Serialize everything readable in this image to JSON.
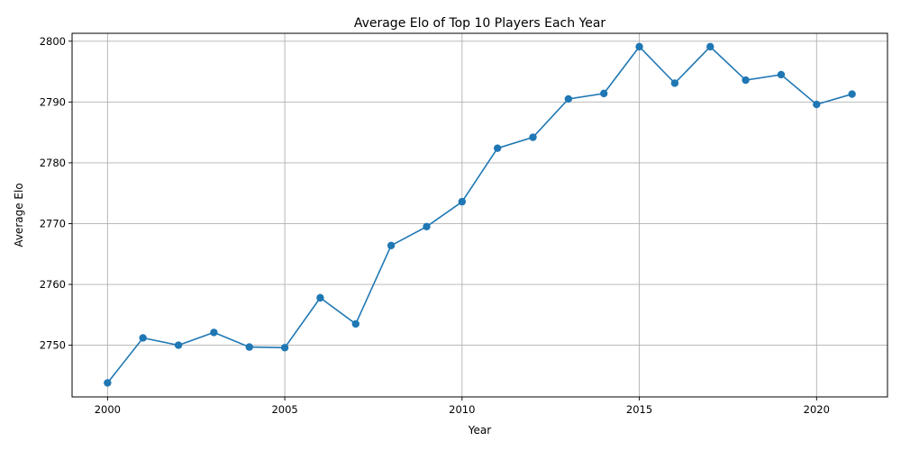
{
  "chart_data": {
    "type": "line",
    "title": "Average Elo of Top 10 Players Each Year",
    "xlabel": "Year",
    "ylabel": "Average Elo",
    "xlim": [
      1999.0,
      2022.0
    ],
    "ylim": [
      2741.5,
      2801.3
    ],
    "xticks": [
      2000,
      2005,
      2010,
      2015,
      2020
    ],
    "yticks": [
      2750,
      2760,
      2770,
      2780,
      2790,
      2800
    ],
    "grid": true,
    "color": "#1f77b4",
    "marker": "circle",
    "x": [
      2000,
      2001,
      2002,
      2003,
      2004,
      2005,
      2006,
      2007,
      2008,
      2009,
      2010,
      2011,
      2012,
      2013,
      2014,
      2015,
      2016,
      2017,
      2018,
      2019,
      2020,
      2021
    ],
    "values": [
      2743.8,
      2751.2,
      2750.0,
      2752.1,
      2749.7,
      2749.6,
      2757.8,
      2753.5,
      2766.4,
      2769.5,
      2773.6,
      2782.4,
      2784.2,
      2790.5,
      2791.4,
      2799.1,
      2793.1,
      2799.1,
      2793.6,
      2794.5,
      2789.6,
      2791.3
    ]
  }
}
